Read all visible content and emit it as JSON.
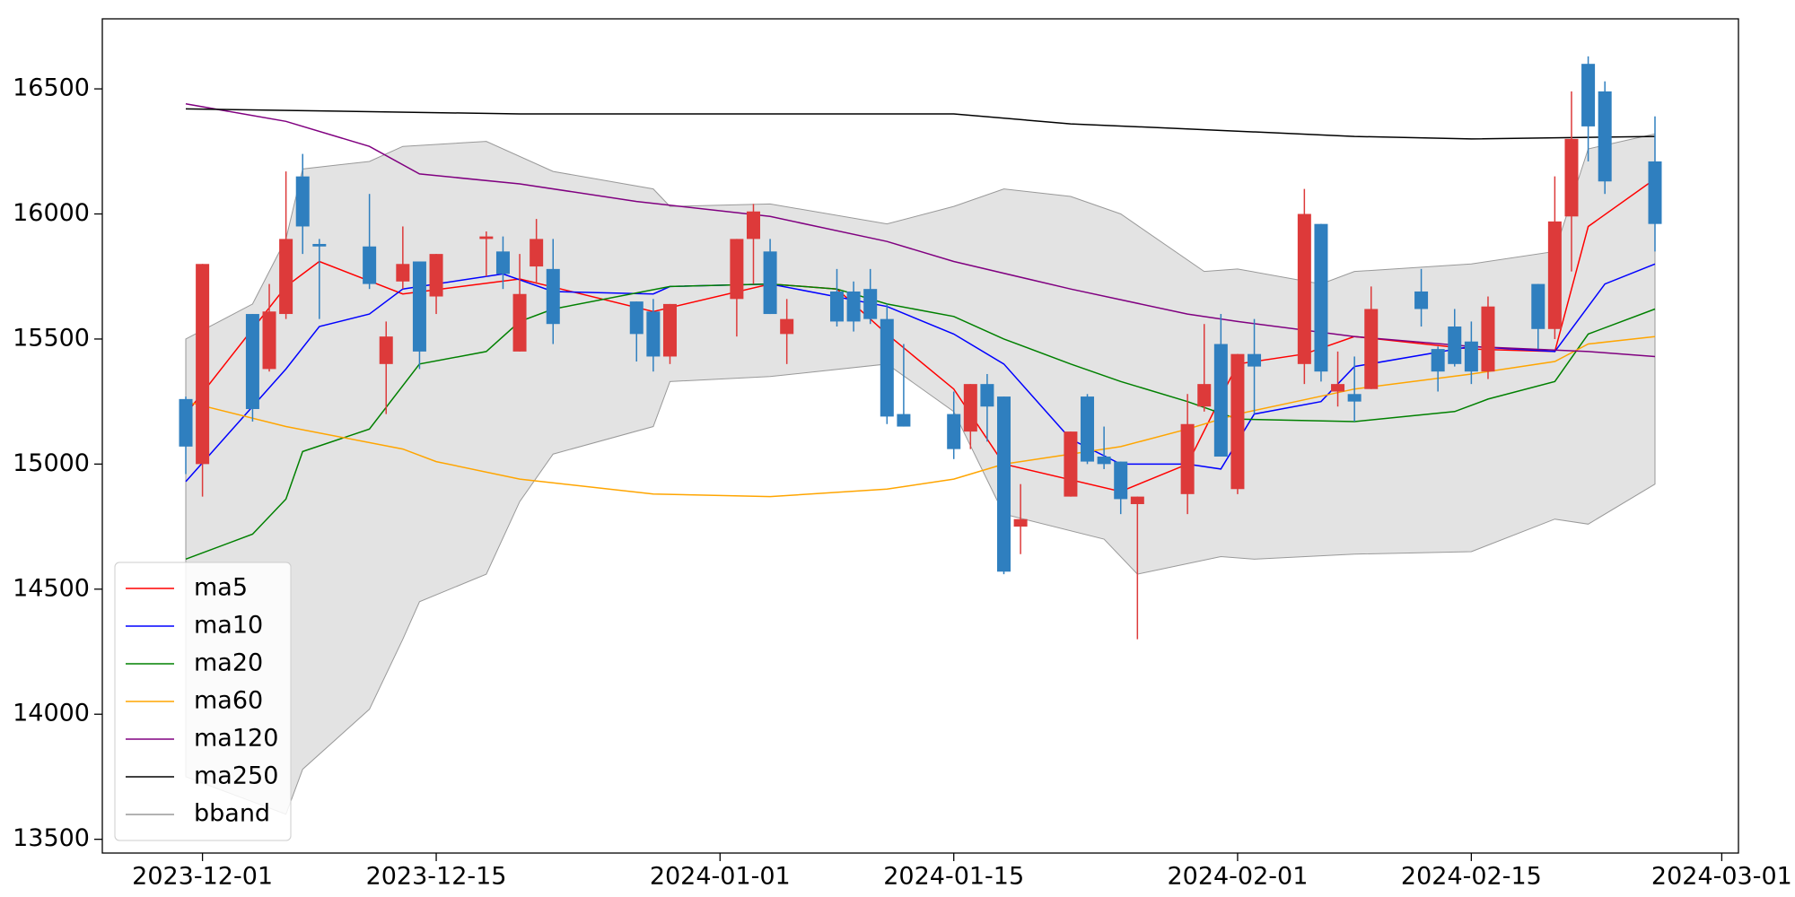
{
  "chart_data": {
    "type": "candlestick",
    "dates": [
      "2023-11-30",
      "2023-12-01",
      "2023-12-04",
      "2023-12-05",
      "2023-12-06",
      "2023-12-07",
      "2023-12-08",
      "2023-12-11",
      "2023-12-12",
      "2023-12-13",
      "2023-12-14",
      "2023-12-15",
      "2023-12-18",
      "2023-12-19",
      "2023-12-20",
      "2023-12-21",
      "2023-12-22",
      "2023-12-27",
      "2023-12-28",
      "2023-12-29",
      "2024-01-02",
      "2024-01-03",
      "2024-01-04",
      "2024-01-05",
      "2024-01-08",
      "2024-01-09",
      "2024-01-10",
      "2024-01-11",
      "2024-01-12",
      "2024-01-15",
      "2024-01-16",
      "2024-01-17",
      "2024-01-18",
      "2024-01-19",
      "2024-01-22",
      "2024-01-23",
      "2024-01-24",
      "2024-01-25",
      "2024-01-26",
      "2024-01-29",
      "2024-01-30",
      "2024-01-31",
      "2024-02-01",
      "2024-02-02",
      "2024-02-05",
      "2024-02-06",
      "2024-02-07",
      "2024-02-08",
      "2024-02-09",
      "2024-02-12",
      "2024-02-13",
      "2024-02-14",
      "2024-02-15",
      "2024-02-16",
      "2024-02-19",
      "2024-02-20",
      "2024-02-21",
      "2024-02-22",
      "2024-02-23",
      "2024-02-26"
    ],
    "open": [
      15260,
      15000,
      15600,
      15380,
      15600,
      16150,
      15880,
      15870,
      15400,
      15730,
      15810,
      15670,
      15900,
      15850,
      15450,
      15790,
      15780,
      15650,
      15610,
      15430,
      15660,
      15900,
      15850,
      15520,
      15690,
      15690,
      15700,
      15580,
      15200,
      15200,
      15130,
      15320,
      15270,
      14750,
      14870,
      15270,
      15030,
      15010,
      14840,
      14880,
      15230,
      15480,
      14900,
      15440,
      15400,
      15960,
      15290,
      15280,
      15300,
      15690,
      15460,
      15550,
      15490,
      15370,
      15720,
      15540,
      15990,
      16600,
      16490,
      16210
    ],
    "high": [
      15270,
      15800,
      15600,
      15720,
      16170,
      16240,
      15900,
      16080,
      15570,
      15950,
      15810,
      15840,
      15930,
      15910,
      15840,
      15980,
      15900,
      15650,
      15660,
      15640,
      15900,
      16040,
      15900,
      15660,
      15780,
      15730,
      15780,
      15640,
      15480,
      15290,
      15320,
      15360,
      15270,
      14920,
      15130,
      15280,
      15150,
      15010,
      14870,
      15280,
      15560,
      15600,
      15440,
      15580,
      16100,
      15960,
      15450,
      15430,
      15710,
      15780,
      15470,
      15620,
      15570,
      15670,
      15720,
      16150,
      16490,
      16630,
      16530,
      16390
    ],
    "low": [
      14960,
      14870,
      15170,
      15370,
      15580,
      15840,
      15580,
      15700,
      15200,
      15700,
      15380,
      15600,
      15750,
      15700,
      15450,
      15720,
      15480,
      15410,
      15370,
      15400,
      15510,
      15720,
      15600,
      15400,
      15550,
      15530,
      15560,
      15160,
      15150,
      15020,
      15060,
      15090,
      14560,
      14640,
      14870,
      15000,
      14980,
      14800,
      14300,
      14800,
      15210,
      15030,
      14880,
      15200,
      15320,
      15330,
      15230,
      15170,
      15300,
      15550,
      15290,
      15390,
      15320,
      15340,
      15460,
      15500,
      15770,
      16210,
      16080,
      15850
    ],
    "close": [
      15070,
      15800,
      15220,
      15610,
      15900,
      15950,
      15870,
      15720,
      15510,
      15800,
      15450,
      15840,
      15910,
      15760,
      15680,
      15900,
      15560,
      15520,
      15430,
      15640,
      15900,
      16010,
      15600,
      15580,
      15570,
      15570,
      15580,
      15190,
      15150,
      15060,
      15320,
      15230,
      14570,
      14780,
      15130,
      15010,
      15000,
      14860,
      14870,
      15160,
      15320,
      15030,
      15440,
      15390,
      16000,
      15370,
      15320,
      15250,
      15620,
      15620,
      15370,
      15400,
      15370,
      15630,
      15540,
      15970,
      16300,
      16350,
      16130,
      15960
    ],
    "up_color": "#dd3a3a",
    "down_color": "#2f7fbf",
    "series": [
      {
        "name": "ma5",
        "color": "#ff0000",
        "x": [
          "2023-11-30",
          "2023-12-06",
          "2023-12-08",
          "2023-12-13",
          "2023-12-20",
          "2023-12-28",
          "2024-01-04",
          "2024-01-08",
          "2024-01-11",
          "2024-01-15",
          "2024-01-18",
          "2024-01-25",
          "2024-01-29",
          "2024-02-01",
          "2024-02-05",
          "2024-02-08",
          "2024-02-15",
          "2024-02-20",
          "2024-02-22",
          "2024-02-26"
        ],
        "values": [
          15200,
          15710,
          15810,
          15680,
          15740,
          15610,
          15720,
          15700,
          15520,
          15300,
          15000,
          14890,
          15000,
          15400,
          15440,
          15510,
          15460,
          15450,
          15950,
          16140
        ]
      },
      {
        "name": "ma10",
        "color": "#0000ff",
        "x": [
          "2023-11-30",
          "2023-12-06",
          "2023-12-08",
          "2023-12-11",
          "2023-12-13",
          "2023-12-19",
          "2023-12-22",
          "2023-12-28",
          "2023-12-29",
          "2024-01-04",
          "2024-01-11",
          "2024-01-15",
          "2024-01-18",
          "2024-01-22",
          "2024-01-25",
          "2024-01-29",
          "2024-01-31",
          "2024-02-02",
          "2024-02-06",
          "2024-02-08",
          "2024-02-15",
          "2024-02-20",
          "2024-02-23",
          "2024-02-26"
        ],
        "values": [
          14930,
          15380,
          15550,
          15600,
          15700,
          15760,
          15690,
          15680,
          15710,
          15720,
          15630,
          15520,
          15400,
          15100,
          15000,
          15000,
          14980,
          15200,
          15250,
          15390,
          15470,
          15450,
          15720,
          15800
        ]
      },
      {
        "name": "ma20",
        "color": "#008000",
        "x": [
          "2023-11-30",
          "2023-12-04",
          "2023-12-06",
          "2023-12-07",
          "2023-12-11",
          "2023-12-14",
          "2023-12-18",
          "2023-12-20",
          "2023-12-22",
          "2023-12-29",
          "2024-01-04",
          "2024-01-08",
          "2024-01-11",
          "2024-01-15",
          "2024-01-18",
          "2024-01-22",
          "2024-01-25",
          "2024-01-29",
          "2024-02-01",
          "2024-02-08",
          "2024-02-14",
          "2024-02-16",
          "2024-02-20",
          "2024-02-22",
          "2024-02-26"
        ],
        "values": [
          14620,
          14720,
          14860,
          15050,
          15140,
          15400,
          15450,
          15570,
          15620,
          15710,
          15720,
          15700,
          15640,
          15590,
          15500,
          15400,
          15330,
          15250,
          15180,
          15170,
          15210,
          15260,
          15330,
          15520,
          15620
        ]
      },
      {
        "name": "ma60",
        "color": "#ffa500",
        "x": [
          "2023-11-30",
          "2023-12-06",
          "2023-12-13",
          "2023-12-15",
          "2023-12-20",
          "2023-12-28",
          "2024-01-04",
          "2024-01-11",
          "2024-01-15",
          "2024-01-18",
          "2024-01-25",
          "2024-01-29",
          "2024-02-01",
          "2024-02-08",
          "2024-02-15",
          "2024-02-20",
          "2024-02-22",
          "2024-02-26"
        ],
        "values": [
          15250,
          15150,
          15060,
          15010,
          14940,
          14880,
          14870,
          14900,
          14940,
          15000,
          15070,
          15140,
          15200,
          15300,
          15360,
          15410,
          15480,
          15510
        ]
      },
      {
        "name": "ma120",
        "color": "#800080",
        "x": [
          "2023-11-30",
          "2023-12-06",
          "2023-12-11",
          "2023-12-14",
          "2023-12-20",
          "2023-12-27",
          "2024-01-04",
          "2024-01-11",
          "2024-01-15",
          "2024-01-22",
          "2024-01-29",
          "2024-02-01",
          "2024-02-08",
          "2024-02-15",
          "2024-02-22",
          "2024-02-26"
        ],
        "values": [
          16440,
          16370,
          16270,
          16160,
          16120,
          16050,
          15990,
          15890,
          15810,
          15700,
          15600,
          15570,
          15510,
          15470,
          15450,
          15430
        ]
      },
      {
        "name": "ma250",
        "color": "#000000",
        "x": [
          "2023-11-30",
          "2023-12-20",
          "2024-01-04",
          "2024-01-15",
          "2024-01-22",
          "2024-01-29",
          "2024-02-08",
          "2024-02-15",
          "2024-02-26"
        ],
        "values": [
          16420,
          16400,
          16400,
          16400,
          16360,
          16340,
          16310,
          16300,
          16310
        ]
      }
    ],
    "band": {
      "name": "bband",
      "color": "#999999",
      "fill": "#e3e3e3",
      "x_upper": [
        "2023-11-30",
        "2023-12-04",
        "2023-12-06",
        "2023-12-07",
        "2023-12-11",
        "2023-12-13",
        "2023-12-18",
        "2023-12-22",
        "2023-12-28",
        "2023-12-29",
        "2024-01-04",
        "2024-01-11",
        "2024-01-15",
        "2024-01-18",
        "2024-01-22",
        "2024-01-25",
        "2024-01-30",
        "2024-02-01",
        "2024-02-06",
        "2024-02-08",
        "2024-02-15",
        "2024-02-20",
        "2024-02-22",
        "2024-02-26"
      ],
      "upper": [
        15500,
        15640,
        15900,
        16180,
        16210,
        16270,
        16290,
        16170,
        16100,
        16030,
        16040,
        15960,
        16030,
        16100,
        16070,
        16000,
        15770,
        15780,
        15720,
        15770,
        15800,
        15850,
        16260,
        16320
      ],
      "x_lower": [
        "2023-11-30",
        "2023-12-06",
        "2023-12-07",
        "2023-12-11",
        "2023-12-13",
        "2023-12-14",
        "2023-12-18",
        "2023-12-20",
        "2023-12-22",
        "2023-12-28",
        "2023-12-29",
        "2024-01-04",
        "2024-01-11",
        "2024-01-15",
        "2024-01-18",
        "2024-01-24",
        "2024-01-26",
        "2024-01-31",
        "2024-02-02",
        "2024-02-08",
        "2024-02-15",
        "2024-02-20",
        "2024-02-22",
        "2024-02-26"
      ],
      "lower": [
        13750,
        13600,
        13780,
        14020,
        14300,
        14450,
        14560,
        14850,
        15040,
        15150,
        15330,
        15350,
        15400,
        15210,
        14800,
        14700,
        14560,
        14630,
        14620,
        14640,
        14650,
        14780,
        14760,
        14920
      ]
    },
    "xlim": [
      "2023-11-25",
      "2024-03-02"
    ],
    "xticks": [
      "2023-12-01",
      "2023-12-15",
      "2024-01-01",
      "2024-01-15",
      "2024-02-01",
      "2024-02-15",
      "2024-03-01"
    ],
    "ylim": [
      13445,
      16780
    ],
    "yticks": [
      13500,
      14000,
      14500,
      15000,
      15500,
      16000,
      16500
    ],
    "legend": "lower left"
  }
}
